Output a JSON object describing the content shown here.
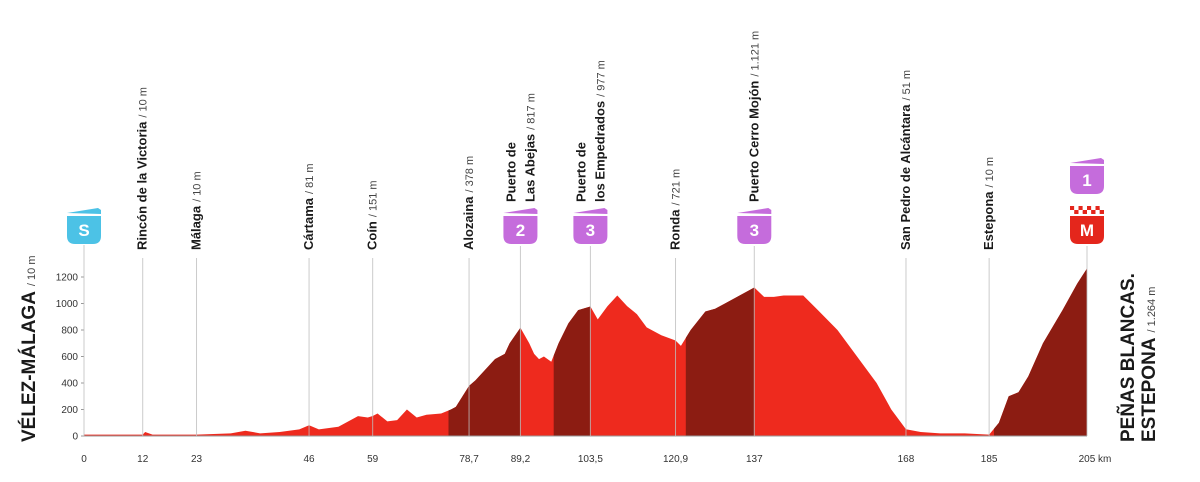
{
  "chart_data": {
    "type": "area",
    "x": [
      0,
      12,
      12.5,
      14,
      23,
      30,
      33,
      36,
      40,
      44,
      46,
      48,
      52,
      56,
      58,
      59,
      60,
      62,
      64,
      66,
      68,
      70,
      73,
      75,
      76,
      78.7,
      80,
      82,
      84,
      86,
      87,
      89.2,
      91,
      92,
      93,
      94,
      95.5,
      97,
      99,
      101,
      103.5,
      105,
      107,
      109,
      111,
      113,
      115,
      118,
      120.9,
      122,
      124,
      127,
      129,
      131,
      134,
      137,
      139,
      141,
      143,
      147,
      150,
      154,
      158,
      162,
      165,
      168,
      171,
      175,
      180,
      185,
      187,
      189,
      191,
      193,
      196,
      200,
      203,
      205
    ],
    "values": [
      10,
      10,
      30,
      10,
      10,
      20,
      40,
      20,
      30,
      50,
      81,
      50,
      70,
      150,
      140,
      151,
      170,
      110,
      120,
      200,
      140,
      160,
      170,
      200,
      220,
      378,
      420,
      500,
      580,
      620,
      700,
      817,
      700,
      620,
      580,
      600,
      560,
      700,
      850,
      950,
      977,
      880,
      980,
      1060,
      980,
      920,
      820,
      760,
      721,
      680,
      800,
      940,
      960,
      1000,
      1060,
      1121,
      1050,
      1050,
      1060,
      1060,
      950,
      800,
      600,
      400,
      200,
      51,
      30,
      20,
      20,
      10,
      100,
      300,
      330,
      450,
      700,
      950,
      1150,
      1264
    ],
    "color": "#ee2a1e",
    "climb_color": "#8c1c12",
    "climbs": [
      {
        "x": [
          74.5,
          89.2
        ]
      },
      {
        "x": [
          96,
          103.5
        ]
      },
      {
        "x": [
          123,
          137
        ]
      },
      {
        "x": [
          186,
          205
        ]
      }
    ],
    "xlim": [
      0,
      205
    ],
    "ylim": [
      0,
      1200
    ],
    "yticks": [
      0,
      200,
      400,
      600,
      800,
      1000,
      1200
    ],
    "xticks": [
      0,
      12,
      23,
      46,
      59,
      {
        "value": 78.7,
        "label": "78,7"
      },
      {
        "value": 89.2,
        "label": "89,2"
      },
      {
        "value": 103.5,
        "label": "103,5"
      },
      {
        "value": 120.9,
        "label": "120,9"
      },
      137,
      168,
      185,
      {
        "value": 205,
        "label": "205 km"
      }
    ],
    "badge_colors": {
      "S": "#4cc2e6",
      "M": "#e4261c",
      "climb": "#c56cdc"
    },
    "waypoints": [
      {
        "name": [
          "VÉLEZ-MÁLAGA"
        ],
        "altitude": "/ 10 m",
        "badges": [
          "S"
        ]
      },
      {
        "name": [
          "Rincón de la Victoria"
        ],
        "altitude": "/ 10 m",
        "badges": []
      },
      {
        "name": [
          "Málaga"
        ],
        "altitude": "/ 10 m",
        "badges": []
      },
      {
        "name": [
          "Cártama"
        ],
        "altitude": "/ 81 m",
        "badges": []
      },
      {
        "name": [
          "Coín"
        ],
        "altitude": "/ 151 m",
        "badges": []
      },
      {
        "name": [
          "Alozaina"
        ],
        "altitude": "/ 378 m",
        "badges": []
      },
      {
        "name": [
          "Puerto de",
          "Las Abejas"
        ],
        "altitude": "/ 817 m",
        "badges": [
          "2"
        ]
      },
      {
        "name": [
          "Puerto de",
          "los Empedrados"
        ],
        "altitude": "/ 977 m",
        "badges": [
          "3"
        ]
      },
      {
        "name": [
          "Ronda"
        ],
        "altitude": "/ 721 m",
        "badges": []
      },
      {
        "name": [
          "Puerto Cerro Mojón"
        ],
        "altitude": "/ 1.121 m",
        "badges": [
          "3"
        ]
      },
      {
        "name": [
          "San Pedro de Alcántara"
        ],
        "altitude": "/ 51 m",
        "badges": []
      },
      {
        "name": [
          "Estepona"
        ],
        "altitude": "/ 10 m",
        "badges": []
      },
      {
        "name": [
          "PEÑAS BLANCAS.",
          "ESTEPONA"
        ],
        "altitude": "/ 1.264 m",
        "badges": [
          "1",
          "M"
        ]
      }
    ]
  }
}
